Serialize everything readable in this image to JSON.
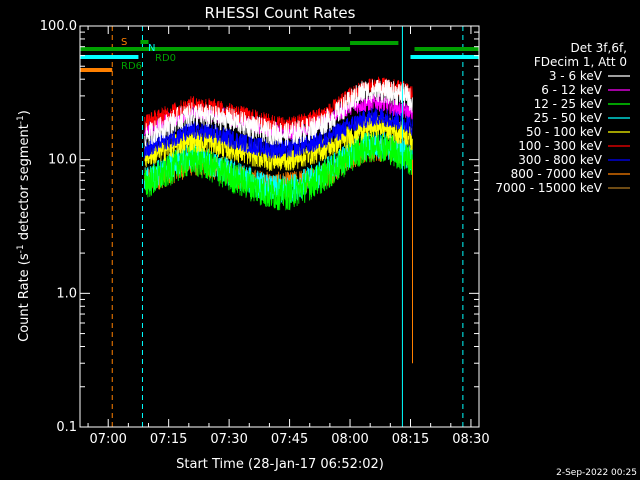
{
  "chart_data": {
    "type": "line",
    "title": "RHESSI Count Rates",
    "xlabel": "Start Time (28-Jan-17 06:52:02)",
    "ylabel_main": "Count Rate (s",
    "ylabel_sup1": "-1",
    "ylabel_mid": " detector segment",
    "ylabel_sup2": "-1",
    "ylabel_end": ")",
    "xlim_minutes": [
      -7,
      92
    ],
    "ylim": [
      0.1,
      100
    ],
    "yscale": "log",
    "x_ticks": [
      {
        "m": 0,
        "label": "07:00"
      },
      {
        "m": 15,
        "label": "07:15"
      },
      {
        "m": 30,
        "label": "07:30"
      },
      {
        "m": 45,
        "label": "07:45"
      },
      {
        "m": 60,
        "label": "08:00"
      },
      {
        "m": 75,
        "label": "08:15"
      },
      {
        "m": 90,
        "label": "08:30"
      }
    ],
    "y_ticks": [
      {
        "v": 0.1,
        "label": "0.1"
      },
      {
        "v": 1,
        "label": "1.0"
      },
      {
        "v": 10,
        "label": "10.0"
      },
      {
        "v": 100,
        "label": "100.0"
      }
    ],
    "legend_header": [
      "Det 3f,6f,",
      "FDecim 1, Att 0"
    ],
    "series": [
      {
        "name": "3 - 6 keV",
        "color": "#ffffff",
        "curve": [
          [
            9,
            15
          ],
          [
            13,
            17
          ],
          [
            17,
            20
          ],
          [
            21,
            22
          ],
          [
            25,
            21
          ],
          [
            30,
            20
          ],
          [
            35,
            18
          ],
          [
            40,
            16
          ],
          [
            45,
            15.5
          ],
          [
            50,
            17
          ],
          [
            55,
            20
          ],
          [
            60,
            27
          ],
          [
            63,
            32
          ],
          [
            67,
            33
          ],
          [
            70,
            32
          ],
          [
            72,
            31
          ],
          [
            74,
            30
          ],
          [
            75.5,
            27
          ]
        ]
      },
      {
        "name": "6 - 12 keV",
        "color": "#ff00ff",
        "curve": [
          [
            9,
            16
          ],
          [
            13,
            19
          ],
          [
            17,
            21
          ],
          [
            21,
            23
          ],
          [
            25,
            22
          ],
          [
            30,
            21
          ],
          [
            35,
            19
          ],
          [
            40,
            17
          ],
          [
            45,
            16
          ],
          [
            50,
            18
          ],
          [
            55,
            21
          ],
          [
            60,
            25
          ],
          [
            63,
            26
          ],
          [
            67,
            27
          ],
          [
            70,
            25
          ],
          [
            72,
            24
          ],
          [
            74,
            23
          ],
          [
            75.5,
            22
          ]
        ]
      },
      {
        "name": "12 - 25 keV",
        "color": "#00ff00",
        "curve": [
          [
            9,
            6.5
          ],
          [
            13,
            7.5
          ],
          [
            17,
            9
          ],
          [
            21,
            10
          ],
          [
            25,
            9
          ],
          [
            30,
            7.5
          ],
          [
            35,
            6.5
          ],
          [
            40,
            5.5
          ],
          [
            45,
            5.5
          ],
          [
            50,
            6.5
          ],
          [
            55,
            8
          ],
          [
            60,
            10.5
          ],
          [
            63,
            12
          ],
          [
            67,
            13
          ],
          [
            70,
            12
          ],
          [
            72,
            11
          ],
          [
            74,
            10.5
          ],
          [
            75.5,
            9.5
          ]
        ]
      },
      {
        "name": "25 - 50 keV",
        "color": "#00ffff",
        "curve": [
          [
            9,
            7
          ],
          [
            13,
            8
          ],
          [
            17,
            9.5
          ],
          [
            21,
            10.5
          ],
          [
            25,
            9.5
          ],
          [
            30,
            8
          ],
          [
            35,
            7
          ],
          [
            40,
            6
          ],
          [
            45,
            6
          ],
          [
            50,
            7
          ],
          [
            55,
            8.5
          ],
          [
            60,
            11
          ],
          [
            63,
            12.5
          ],
          [
            67,
            13
          ],
          [
            70,
            12.5
          ],
          [
            72,
            11.5
          ],
          [
            74,
            11
          ],
          [
            75.5,
            10
          ]
        ]
      },
      {
        "name": "50 - 100 keV",
        "color": "#ffff00",
        "curve": [
          [
            9,
            10.5
          ],
          [
            13,
            11.5
          ],
          [
            17,
            13
          ],
          [
            21,
            14
          ],
          [
            25,
            13.5
          ],
          [
            30,
            12
          ],
          [
            35,
            11
          ],
          [
            40,
            10
          ],
          [
            45,
            10
          ],
          [
            50,
            11
          ],
          [
            55,
            12.5
          ],
          [
            60,
            15
          ],
          [
            63,
            17
          ],
          [
            67,
            18
          ],
          [
            70,
            17
          ],
          [
            72,
            16
          ],
          [
            74,
            15.5
          ],
          [
            75.5,
            14
          ]
        ]
      },
      {
        "name": "100 - 300 keV",
        "color": "#ff0000",
        "curve": [
          [
            9,
            19
          ],
          [
            13,
            21
          ],
          [
            17,
            23.5
          ],
          [
            21,
            26
          ],
          [
            25,
            25
          ],
          [
            30,
            23
          ],
          [
            35,
            21
          ],
          [
            40,
            19
          ],
          [
            45,
            18
          ],
          [
            50,
            20
          ],
          [
            55,
            23
          ],
          [
            60,
            30
          ],
          [
            63,
            34
          ],
          [
            67,
            36
          ],
          [
            70,
            35
          ],
          [
            72,
            34
          ],
          [
            74,
            33
          ],
          [
            75.5,
            31
          ]
        ]
      },
      {
        "name": "300 - 800 keV",
        "color": "#0000ff",
        "curve": [
          [
            9,
            12
          ],
          [
            13,
            13.5
          ],
          [
            17,
            15
          ],
          [
            21,
            16.5
          ],
          [
            25,
            16
          ],
          [
            30,
            14.5
          ],
          [
            35,
            13
          ],
          [
            40,
            12
          ],
          [
            45,
            12
          ],
          [
            50,
            13
          ],
          [
            55,
            15
          ],
          [
            60,
            18
          ],
          [
            63,
            20
          ],
          [
            67,
            21
          ],
          [
            70,
            20.5
          ],
          [
            72,
            19.5
          ],
          [
            74,
            19
          ],
          [
            75.5,
            17.5
          ]
        ]
      },
      {
        "name": "800 - 7000 keV",
        "color": "#ff8000",
        "curve": [
          [
            9,
            7
          ],
          [
            13,
            7.5
          ],
          [
            17,
            8.5
          ],
          [
            21,
            9.5
          ],
          [
            25,
            9
          ],
          [
            30,
            8
          ],
          [
            35,
            7
          ],
          [
            40,
            6.5
          ],
          [
            45,
            6.5
          ],
          [
            50,
            7
          ],
          [
            55,
            8
          ],
          [
            60,
            10.5
          ],
          [
            63,
            11.5
          ],
          [
            67,
            12
          ],
          [
            70,
            12
          ],
          [
            72,
            11.5
          ],
          [
            74,
            11
          ],
          [
            75.5,
            10
          ]
        ]
      },
      {
        "name": "7000 - 15000 keV",
        "color": "#b07820",
        "curve": []
      }
    ],
    "annotations": [
      {
        "text": "S",
        "color": "#ff8000"
      },
      {
        "text": "N",
        "color": "#00ffff"
      },
      {
        "text": "RD6",
        "color": "#00a000"
      },
      {
        "text": "RD0",
        "color": "#00a000"
      }
    ],
    "flag_bars": [
      {
        "name": "S",
        "color": "#ff8000",
        "y": 70,
        "x0": -7,
        "x1": 1
      },
      {
        "name": "N",
        "color": "#00ffff",
        "y": 57,
        "x0": -7,
        "x1": 7.5
      },
      {
        "name": "N",
        "color": "#00ffff",
        "y": 57,
        "x0": 75,
        "x1": 92
      },
      {
        "name": "RD",
        "color": "#00a000",
        "y": 49,
        "x0": -7,
        "x1": 60
      },
      {
        "name": "RD",
        "color": "#00a000",
        "y": 49,
        "x0": 76,
        "x1": 92
      },
      {
        "name": "RD",
        "color": "#00a000",
        "y": 43,
        "x0": 60,
        "x1": 72
      },
      {
        "name": "RD",
        "color": "#00a000",
        "y": 42,
        "x0": 8,
        "x1": 10
      }
    ],
    "vlines": [
      {
        "m": -7,
        "color": "#00ffff",
        "dash": false
      },
      {
        "m": 1,
        "color": "#ff8000",
        "dash": true
      },
      {
        "m": 8.5,
        "color": "#00ffff",
        "dash": true
      },
      {
        "m": 73,
        "color": "#00ffff",
        "dash": false
      },
      {
        "m": 88,
        "color": "#00ffff",
        "dash": true
      }
    ],
    "data_start_minute": 9,
    "data_end_minute": 75.5,
    "grid": false
  },
  "footer_timestamp": "2-Sep-2022 00:25"
}
